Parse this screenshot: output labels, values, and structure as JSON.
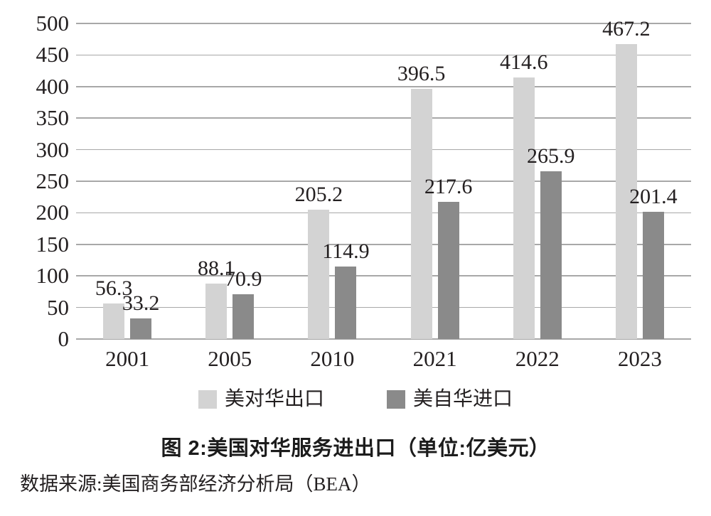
{
  "chart_data": {
    "type": "bar",
    "title": "图 2:美国对华服务进出口（单位:亿美元）",
    "source": "数据来源:美国商务部经济分析局（BEA）",
    "categories": [
      "2001",
      "2005",
      "2010",
      "2021",
      "2022",
      "2023"
    ],
    "series": [
      {
        "name": "美对华出口",
        "color": "#d3d3d3",
        "values": [
          56.3,
          88.1,
          205.2,
          396.5,
          414.6,
          467.2
        ]
      },
      {
        "name": "美自华进口",
        "color": "#8a8a8a",
        "values": [
          33.2,
          70.9,
          114.9,
          217.6,
          265.9,
          201.4
        ]
      }
    ],
    "ylim": [
      0,
      500
    ],
    "ytick_step": 50,
    "grid": true,
    "legend_position": "bottom",
    "gridline_color": "#a8a8a8",
    "value_labels_shown": true
  }
}
